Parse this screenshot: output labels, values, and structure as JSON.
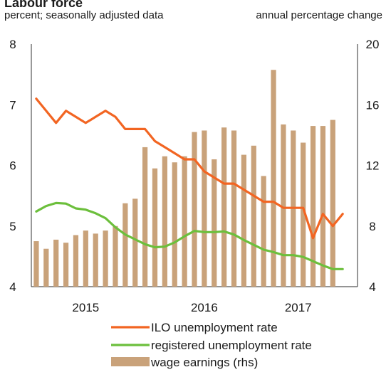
{
  "chart_data": {
    "type": "bar+line",
    "title": "Labour force",
    "left_axis_label": "percent; seasonally adjusted data",
    "right_axis_label": "annual percentage change",
    "y_left": {
      "min": 4,
      "max": 8,
      "ticks": [
        "4",
        "5",
        "6",
        "7",
        "8"
      ]
    },
    "y_right": {
      "min": 4,
      "max": 20,
      "ticks": [
        "4",
        "8",
        "12",
        "16",
        "20"
      ]
    },
    "x_tick_labels": [
      {
        "label": "2015",
        "month_index": 5.5
      },
      {
        "label": "2016",
        "month_index": 17.5
      },
      {
        "label": "2017",
        "month_index": 27
      }
    ],
    "months": 33,
    "legend": [
      {
        "label": "ILO unemployment rate",
        "color": "#f26522",
        "kind": "line"
      },
      {
        "label": "registered unemployment rate",
        "color": "#6cbf3c",
        "kind": "line"
      },
      {
        "label": "wage earnings (rhs)",
        "color": "#c9a27a",
        "kind": "bar"
      }
    ],
    "series": [
      {
        "name": "ILO unemployment rate",
        "axis": "left",
        "color": "#f26522",
        "values": [
          7.1,
          6.9,
          6.7,
          6.9,
          6.8,
          6.7,
          6.8,
          6.9,
          6.8,
          6.6,
          6.6,
          6.6,
          6.4,
          6.3,
          6.2,
          6.1,
          6.1,
          5.9,
          5.8,
          5.7,
          5.7,
          5.6,
          5.5,
          5.4,
          5.4,
          5.3,
          5.3,
          5.3,
          4.8,
          5.2,
          5.0,
          5.2,
          null
        ]
      },
      {
        "name": "registered unemployment rate",
        "axis": "left",
        "color": "#6cbf3c",
        "values": [
          5.24,
          5.33,
          5.38,
          5.37,
          5.29,
          5.27,
          5.21,
          5.13,
          4.98,
          4.86,
          4.78,
          4.7,
          4.65,
          4.66,
          4.73,
          4.83,
          4.92,
          4.9,
          4.9,
          4.91,
          4.86,
          4.77,
          4.69,
          4.61,
          4.57,
          4.52,
          4.52,
          4.49,
          4.42,
          4.35,
          4.29,
          4.29,
          null
        ]
      },
      {
        "name": "wage earnings (rhs)",
        "axis": "right",
        "color": "#c9a27a",
        "values": [
          7.0,
          6.5,
          7.1,
          6.9,
          7.4,
          7.7,
          7.5,
          7.7,
          8.0,
          9.5,
          9.8,
          13.2,
          11.8,
          12.6,
          12.2,
          12.6,
          14.2,
          14.3,
          12.4,
          14.5,
          14.3,
          12.7,
          13.3,
          11.3,
          18.3,
          14.7,
          14.3,
          13.5,
          14.6,
          14.6,
          15.0,
          null,
          null
        ]
      }
    ]
  }
}
